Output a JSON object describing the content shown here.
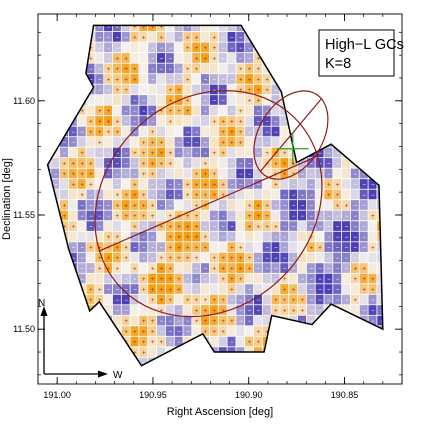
{
  "chart_data": {
    "type": "heatmap",
    "title": "",
    "legend_text": [
      "High−L GCs",
      "K=8"
    ],
    "legend_position": "top-right",
    "xlabel": "Right Ascension [deg]",
    "ylabel": "Declination [deg]",
    "xlim": [
      191.01,
      190.82
    ],
    "ylim": [
      11.476,
      11.638
    ],
    "x_reversed": true,
    "xticks": [
      191.0,
      190.95,
      190.9,
      190.85
    ],
    "xtick_labels": [
      "191.00",
      "190.95",
      "190.90",
      "190.85"
    ],
    "yticks": [
      11.5,
      11.55,
      11.6
    ],
    "ytick_labels": [
      "11.50",
      "11.55",
      "11.60"
    ],
    "grid": false,
    "compass": {
      "north": "N",
      "west": "W"
    },
    "cell_size_deg": 0.0046,
    "color_scale": {
      "low": "#4b3fb3",
      "mid": "#f5f2ee",
      "high": "#f59f16"
    },
    "footprint_polygon": [
      [
        190.981,
        11.633
      ],
      [
        190.904,
        11.633
      ],
      [
        190.883,
        11.604
      ],
      [
        190.875,
        11.573
      ],
      [
        190.857,
        11.581
      ],
      [
        190.832,
        11.563
      ],
      [
        190.83,
        11.5
      ],
      [
        190.857,
        11.511
      ],
      [
        190.867,
        11.502
      ],
      [
        190.888,
        11.506
      ],
      [
        190.892,
        11.49
      ],
      [
        190.918,
        11.49
      ],
      [
        190.924,
        11.498
      ],
      [
        190.956,
        11.484
      ],
      [
        190.978,
        11.512
      ],
      [
        190.983,
        11.508
      ],
      [
        190.994,
        11.535
      ],
      [
        191.005,
        11.572
      ],
      [
        190.981,
        11.606
      ],
      [
        190.985,
        11.612
      ]
    ],
    "ellipses": [
      {
        "center": [
          190.921,
          11.555
        ],
        "semi_major": 0.0606,
        "semi_minor": 0.0478,
        "angle_deg": 20,
        "color": "#8e1d1d"
      },
      {
        "center": [
          190.878,
          11.585
        ],
        "semi_major": 0.0225,
        "semi_minor": 0.0155,
        "angle_deg": 45,
        "color": "#8e1d1d"
      }
    ],
    "cross_marker": {
      "position": [
        190.877,
        11.579
      ],
      "color": "#2e9e2e"
    }
  }
}
